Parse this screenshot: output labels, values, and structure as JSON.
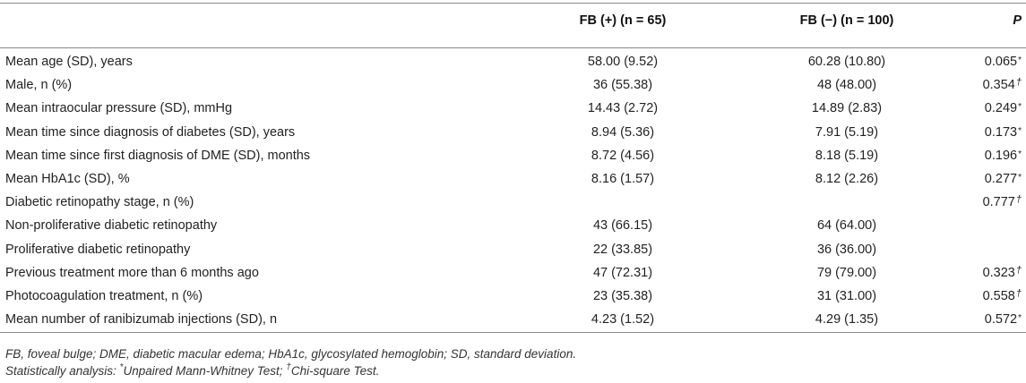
{
  "table": {
    "header": {
      "label": "",
      "fb_pos": "FB (+) (n = 65)",
      "fb_neg": "FB (−) (n = 100)",
      "p": "P"
    },
    "rows": [
      {
        "label": "Mean age (SD), years",
        "fb_pos": "58.00 (9.52)",
        "fb_neg": "60.28 (10.80)",
        "p": "0.065",
        "mark": "*"
      },
      {
        "label": "Male, n (%)",
        "fb_pos": "36 (55.38)",
        "fb_neg": "48 (48.00)",
        "p": "0.354",
        "mark": "†"
      },
      {
        "label": "Mean intraocular pressure (SD), mmHg",
        "fb_pos": "14.43 (2.72)",
        "fb_neg": "14.89 (2.83)",
        "p": "0.249",
        "mark": "*"
      },
      {
        "label": "Mean time since diagnosis of diabetes (SD), years",
        "fb_pos": "8.94 (5.36)",
        "fb_neg": "7.91 (5.19)",
        "p": "0.173",
        "mark": "*"
      },
      {
        "label": "Mean time since first diagnosis of DME (SD), months",
        "fb_pos": "8.72 (4.56)",
        "fb_neg": "8.18 (5.19)",
        "p": "0.196",
        "mark": "*"
      },
      {
        "label": "Mean HbA1c (SD), %",
        "fb_pos": "8.16 (1.57)",
        "fb_neg": "8.12 (2.26)",
        "p": "0.277",
        "mark": "*"
      },
      {
        "label": "Diabetic retinopathy stage, n (%)",
        "fb_pos": "",
        "fb_neg": "",
        "p": "0.777",
        "mark": "†"
      },
      {
        "label": "Non-proliferative diabetic retinopathy",
        "fb_pos": "43 (66.15)",
        "fb_neg": "64 (64.00)",
        "p": "",
        "mark": ""
      },
      {
        "label": "Proliferative diabetic retinopathy",
        "fb_pos": "22 (33.85)",
        "fb_neg": "36 (36.00)",
        "p": "",
        "mark": ""
      },
      {
        "label": "Previous treatment more than 6 months ago",
        "fb_pos": "47 (72.31)",
        "fb_neg": "79 (79.00)",
        "p": "0.323",
        "mark": "†"
      },
      {
        "label": "Photocoagulation treatment, n (%)",
        "fb_pos": "23 (35.38)",
        "fb_neg": "31 (31.00)",
        "p": "0.558",
        "mark": "†"
      },
      {
        "label": "Mean number of ranibizumab injections (SD), n",
        "fb_pos": "4.23 (1.52)",
        "fb_neg": "4.29 (1.35)",
        "p": "0.572",
        "mark": "*"
      }
    ]
  },
  "footnotes": {
    "abbreviations": "FB, foveal bulge; DME, diabetic macular edema; HbA1c, glycosylated hemoglobin; SD, standard deviation.",
    "stats_prefix": "Statistically analysis: ",
    "mark_star": "*",
    "stats_test1": "Unpaired Mann-Whitney Test; ",
    "mark_dagger": "†",
    "stats_test2": "Chi-square Test."
  }
}
